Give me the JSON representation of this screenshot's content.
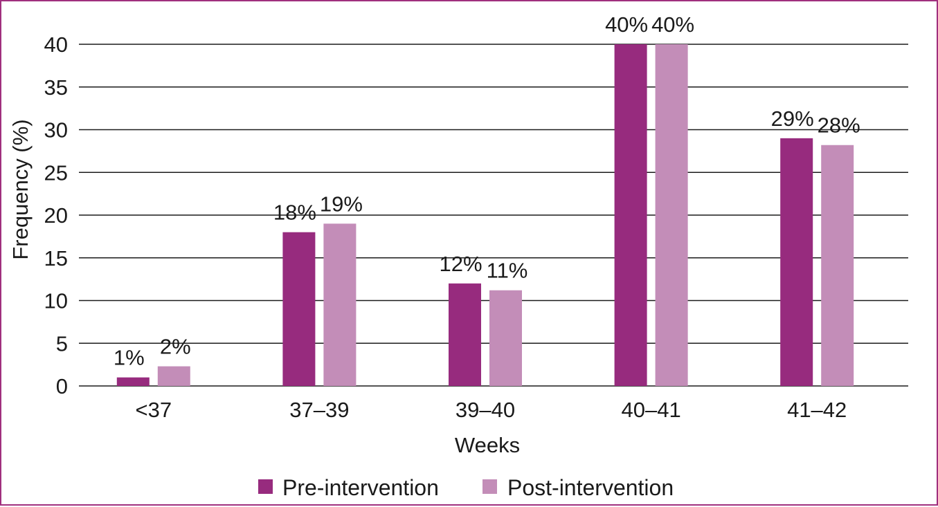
{
  "chart_data": {
    "type": "bar",
    "categories": [
      "<37",
      "37–39",
      "39–40",
      "40–41",
      "41–42"
    ],
    "series": [
      {
        "name": "Pre-intervention",
        "color": "#972b7e",
        "values": [
          1,
          18,
          12,
          40,
          29
        ],
        "labels": [
          "1%",
          "18%",
          "12%",
          "40%",
          "29%"
        ]
      },
      {
        "name": "Post-intervention",
        "color": "#c38db8",
        "values": [
          2.3,
          19,
          11.2,
          40,
          28.2
        ],
        "labels": [
          "2%",
          "19%",
          "11%",
          "40%",
          "28%"
        ]
      }
    ],
    "xlabel": "Weeks",
    "ylabel": "Frequency (%)",
    "ylim": [
      0,
      40
    ],
    "yticks": [
      0,
      5,
      10,
      15,
      20,
      25,
      30,
      35,
      40
    ],
    "grid": true,
    "legend_position": "bottom"
  },
  "colors": {
    "frame": "#a0307e",
    "gridline": "#1a1a1a"
  }
}
